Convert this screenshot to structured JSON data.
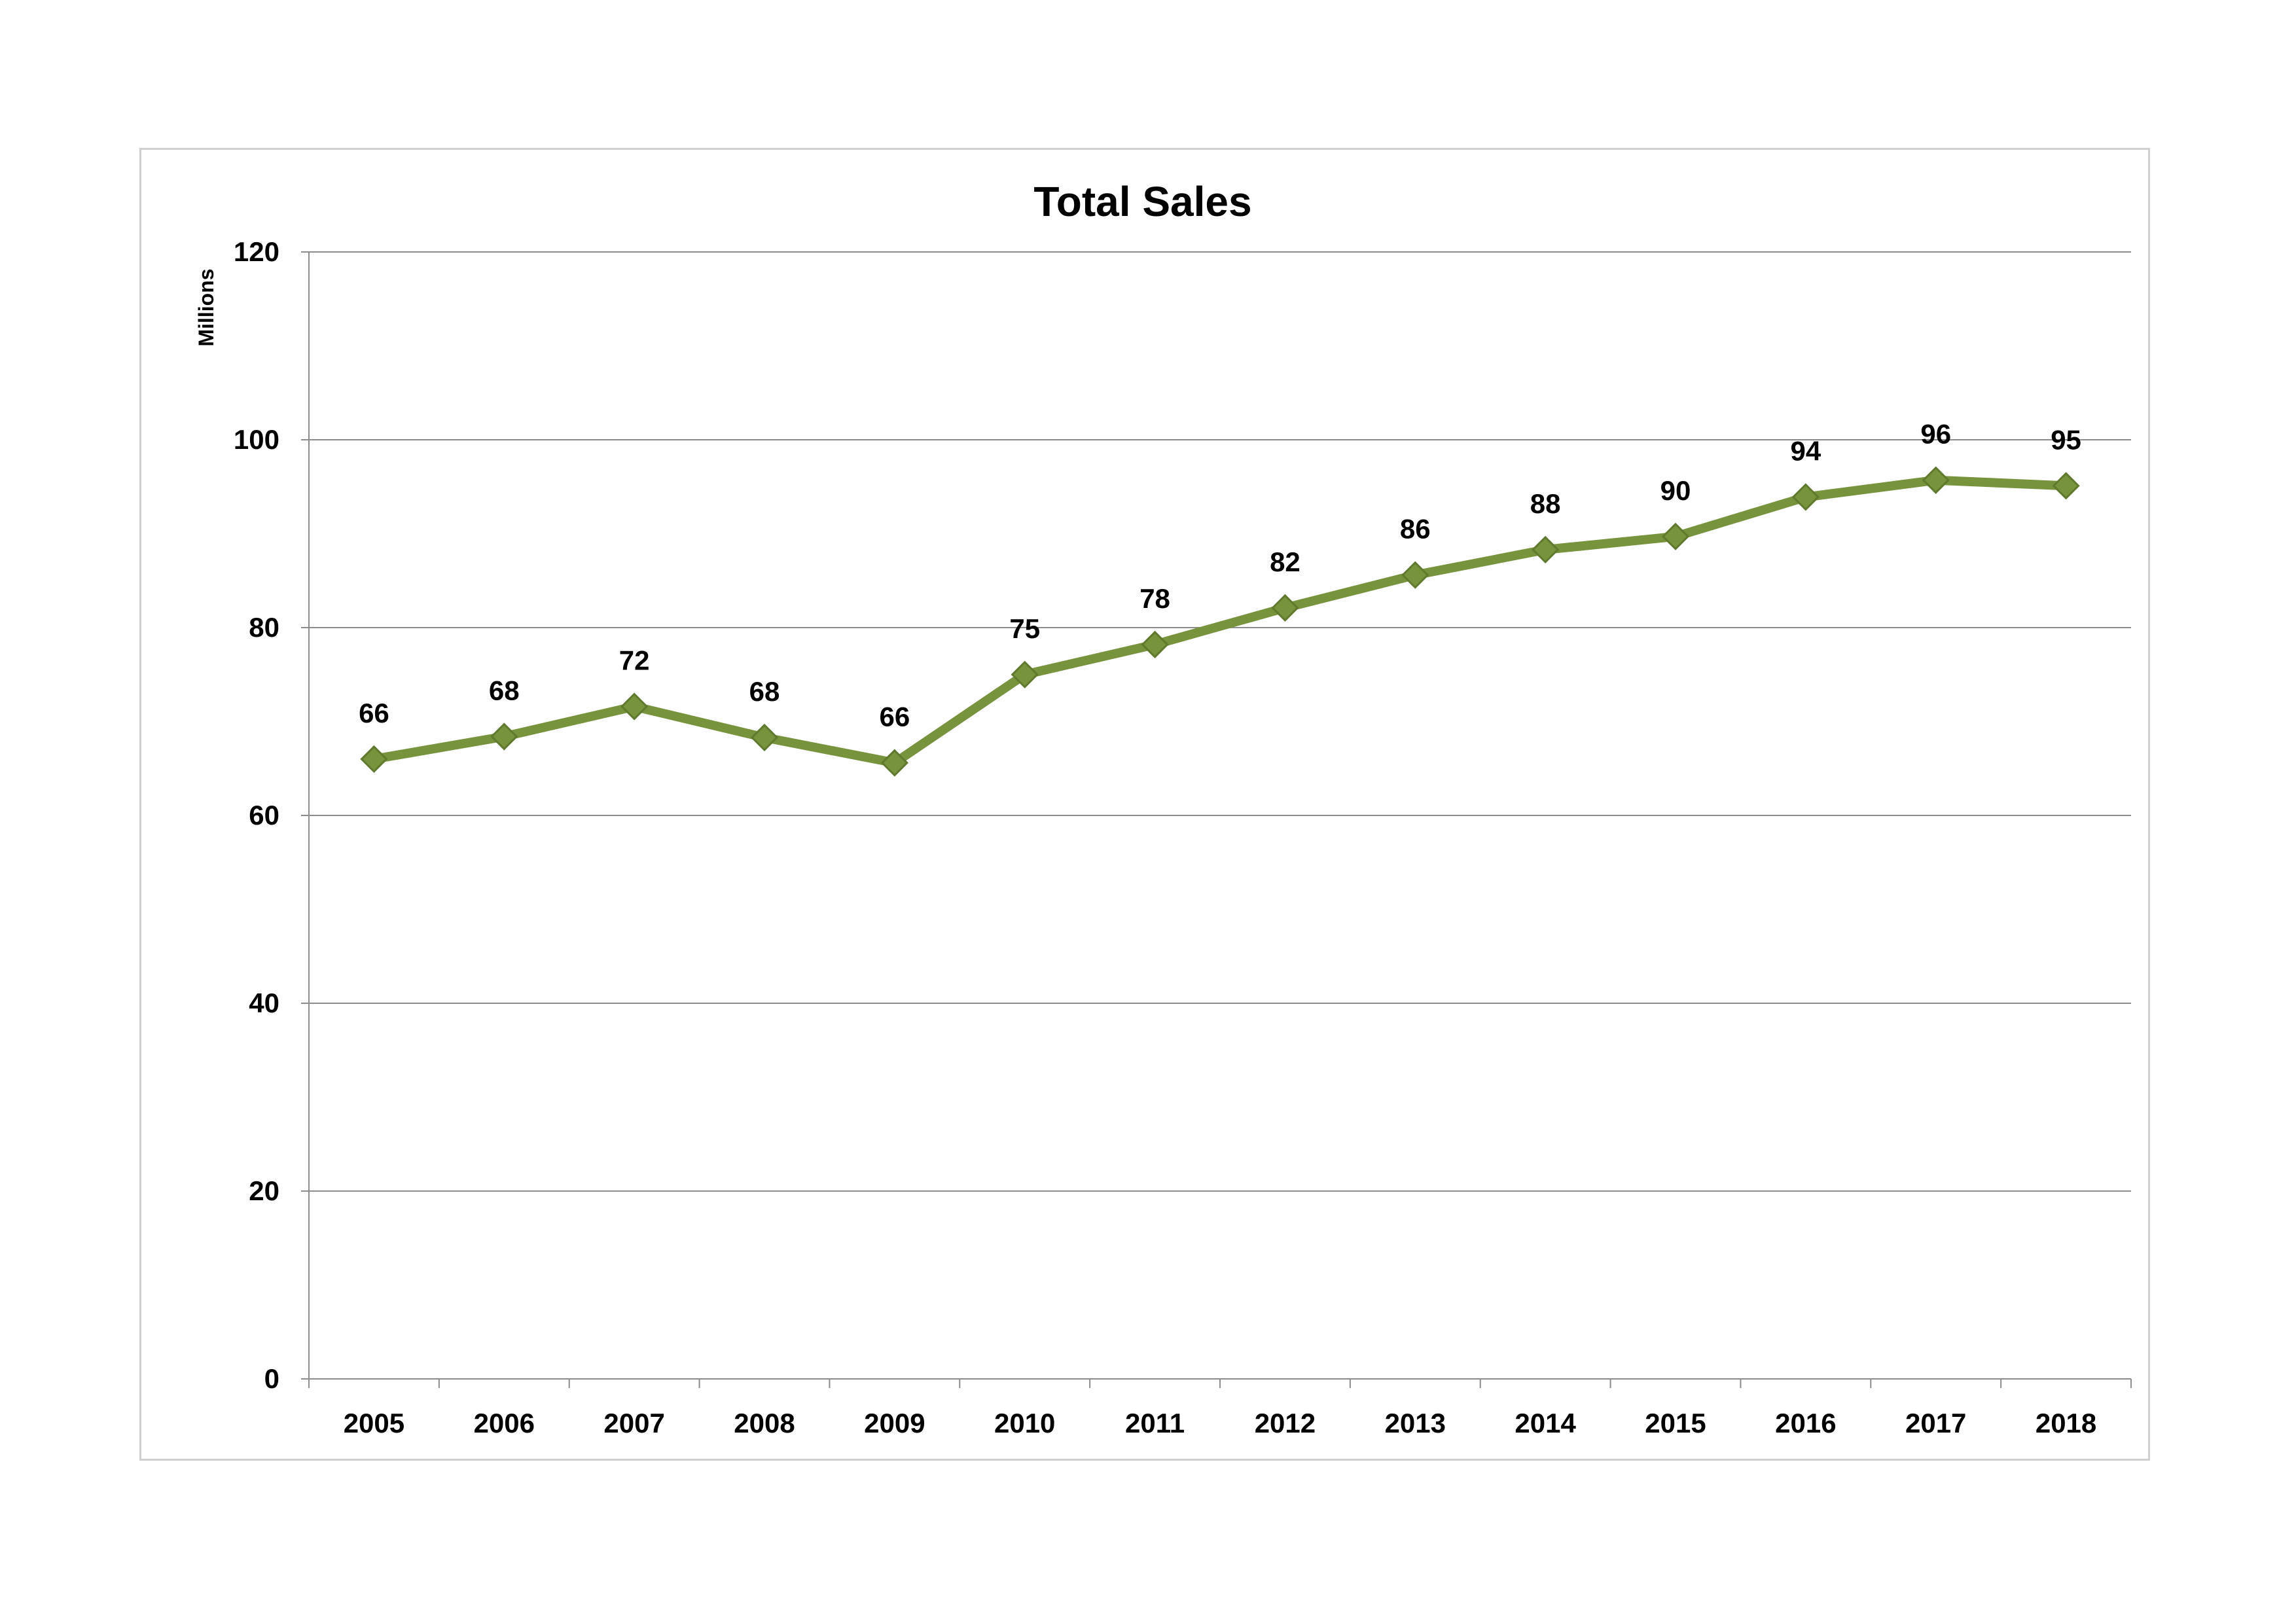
{
  "chart_data": {
    "type": "line",
    "title": "Total Sales",
    "ylabel": "Millions",
    "xlabel": "",
    "ylim": [
      0,
      120
    ],
    "yticks": [
      "0",
      "20",
      "40",
      "60",
      "80",
      "100",
      "120"
    ],
    "categories": [
      "2005",
      "2006",
      "2007",
      "2008",
      "2009",
      "2010",
      "2011",
      "2012",
      "2013",
      "2014",
      "2015",
      "2016",
      "2017",
      "2018"
    ],
    "series": [
      {
        "values": [
          66,
          68.4,
          71.6,
          68.3,
          65.6,
          75.0,
          78.2,
          82.1,
          85.6,
          88.3,
          89.7,
          93.9,
          95.7,
          95.1
        ],
        "labels": [
          "66",
          "68",
          "72",
          "68",
          "66",
          "75",
          "78",
          "82",
          "86",
          "88",
          "90",
          "94",
          "96",
          "95"
        ],
        "color": "#77933c",
        "marker": "diamond"
      }
    ],
    "grid": true,
    "legend": "none"
  }
}
